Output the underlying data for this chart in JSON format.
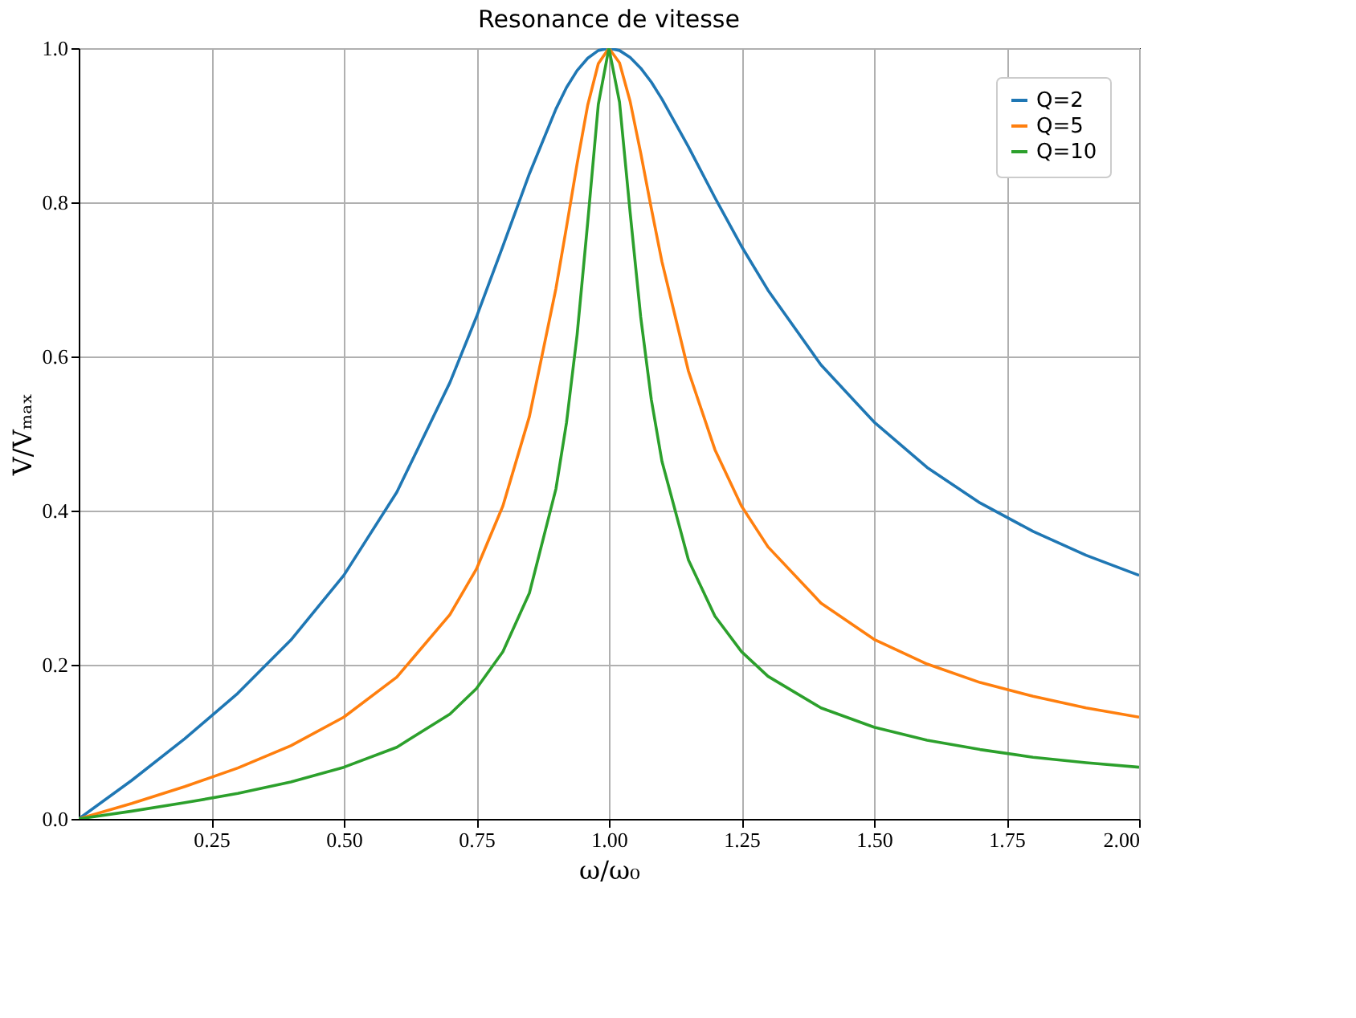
{
  "chart_data": {
    "type": "line",
    "title": "Resonance de vitesse",
    "xlabel": "ω/ω₀",
    "ylabel": "V/Vₘₐₓ",
    "x": [
      0,
      0.1,
      0.2,
      0.3,
      0.4,
      0.5,
      0.6,
      0.7,
      0.75,
      0.8,
      0.85,
      0.9,
      0.92,
      0.94,
      0.96,
      0.98,
      1.0,
      1.02,
      1.04,
      1.06,
      1.08,
      1.1,
      1.15,
      1.2,
      1.25,
      1.3,
      1.4,
      1.5,
      1.6,
      1.7,
      1.8,
      1.9,
      2.0
    ],
    "series": [
      {
        "name": "Q=2",
        "color": "#1f77b4",
        "values": [
          0,
          0.05,
          0.104,
          0.163,
          0.232,
          0.316,
          0.424,
          0.566,
          0.651,
          0.743,
          0.837,
          0.921,
          0.949,
          0.971,
          0.987,
          0.997,
          1.0,
          0.997,
          0.988,
          0.974,
          0.956,
          0.934,
          0.872,
          0.806,
          0.743,
          0.686,
          0.589,
          0.515,
          0.456,
          0.41,
          0.373,
          0.342,
          0.316
        ]
      },
      {
        "name": "Q=5",
        "color": "#ff7f0e",
        "values": [
          0,
          0.02,
          0.042,
          0.066,
          0.095,
          0.132,
          0.184,
          0.265,
          0.324,
          0.406,
          0.522,
          0.688,
          0.768,
          0.85,
          0.926,
          0.98,
          1.0,
          0.981,
          0.931,
          0.864,
          0.792,
          0.723,
          0.581,
          0.479,
          0.406,
          0.353,
          0.28,
          0.233,
          0.201,
          0.177,
          0.159,
          0.144,
          0.132
        ]
      },
      {
        "name": "Q=10",
        "color": "#2ca02c",
        "values": [
          0,
          0.01,
          0.021,
          0.033,
          0.048,
          0.067,
          0.093,
          0.136,
          0.169,
          0.217,
          0.293,
          0.428,
          0.514,
          0.628,
          0.774,
          0.927,
          1.0,
          0.93,
          0.787,
          0.651,
          0.544,
          0.464,
          0.336,
          0.263,
          0.217,
          0.185,
          0.144,
          0.119,
          0.102,
          0.09,
          0.08,
          0.073,
          0.067
        ]
      }
    ],
    "xlim": [
      0,
      2
    ],
    "xticks": [
      0.25,
      {
        "value": 0.5,
        "label": "0.50"
      },
      0.75,
      {
        "value": 1,
        "label": "1.00"
      },
      1.25,
      {
        "value": 1.5,
        "label": "1.50"
      },
      1.75,
      {
        "value": 2,
        "label": "2.00"
      }
    ],
    "ylim": [
      0,
      1
    ],
    "yticks": [
      {
        "value": 0,
        "label": "0.0"
      },
      0.2,
      0.4,
      0.6,
      0.8,
      {
        "value": 1,
        "label": "1.0"
      }
    ],
    "grid": true,
    "legend": "top right"
  }
}
